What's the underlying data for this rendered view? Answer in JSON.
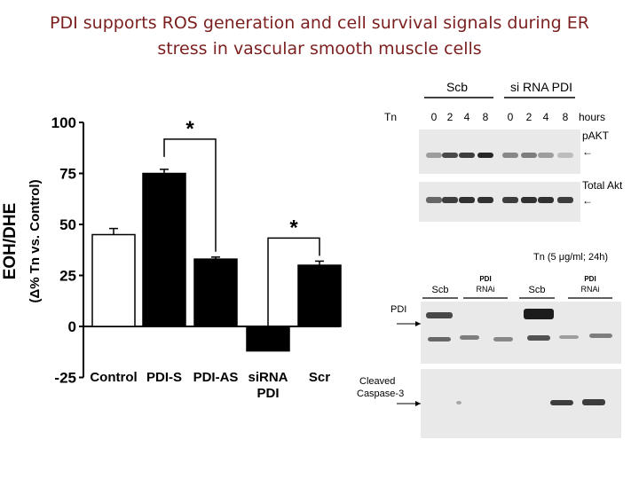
{
  "slide": {
    "title_line1": "PDI  supports ROS generation and cell survival signals during ER",
    "title_line2": "stress in vascular smooth muscle cells"
  },
  "chart_data": {
    "type": "bar",
    "ylabel_main": "EOH/DHE",
    "ylabel_sub": "(Δ% Tn vs. Control)",
    "categories": [
      "Control",
      "PDI-S",
      "PDI-AS",
      "siRNA PDI",
      "Scr"
    ],
    "category_lines": [
      [
        "Control"
      ],
      [
        "PDI-S"
      ],
      [
        "PDI-AS"
      ],
      [
        "siRNA",
        "PDI"
      ],
      [
        "Scr"
      ]
    ],
    "values": [
      45,
      75,
      33,
      -12,
      30
    ],
    "errors": [
      3,
      2,
      1,
      0,
      2
    ],
    "fills": [
      "#ffffff",
      "#000000",
      "#000000",
      "#000000",
      "#000000"
    ],
    "yticks": [
      100,
      75,
      50,
      25,
      0,
      -25
    ],
    "ylim": [
      -25,
      100
    ],
    "significance": [
      {
        "from": 1,
        "to": 2,
        "label": "*"
      },
      {
        "from": 3,
        "to": 4,
        "label": "*"
      }
    ]
  },
  "blot_top": {
    "group1": "Scb",
    "group2": "si RNA PDI",
    "row_label": "Tn",
    "lanes": [
      "0",
      "2",
      "4",
      "8",
      "0",
      "2",
      "4",
      "8"
    ],
    "unit": "hours",
    "band1_label": "pAKT",
    "band2_label": "Total Akt",
    "arrow": "←"
  },
  "blot_bottom": {
    "condition": "Tn (5 μg/ml; 24h)",
    "col_headers": [
      {
        "lines": [
          "Scb"
        ]
      },
      {
        "lines": [
          "PDI",
          "RNAi"
        ]
      },
      {
        "lines": [
          "Scb"
        ]
      },
      {
        "lines": [
          "PDI",
          "RNAi"
        ]
      }
    ],
    "band1_label": "PDI",
    "band2_line1": "Cleaved",
    "band2_line2": "Caspase-3"
  }
}
